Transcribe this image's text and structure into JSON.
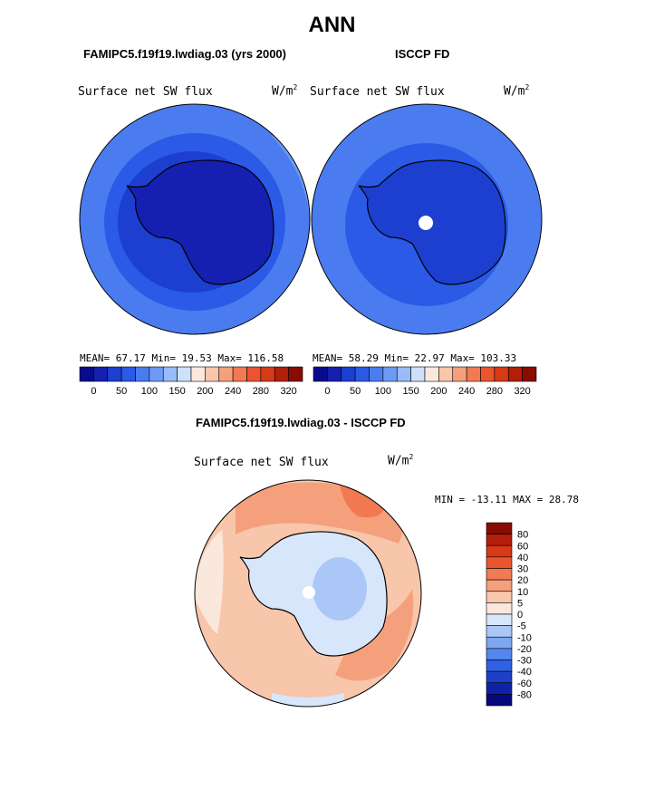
{
  "title": "ANN",
  "panel_left": {
    "case": "FAMIPC5.f19f19.lwdiag.03 (yrs 2000)",
    "variable": "Surface net SW flux",
    "units_base": "W/m",
    "units_exp": "2",
    "stats_text": "MEAN=  67.17   Min=  19.53   Max= 116.58"
  },
  "panel_right": {
    "case": "ISCCP FD",
    "variable": "Surface net SW flux",
    "units_base": "W/m",
    "units_exp": "2",
    "stats_text": "MEAN=  58.29   Min=  22.97   Max= 103.33"
  },
  "panel_diff": {
    "case": "FAMIPC5.f19f19.lwdiag.03 - ISCCP FD",
    "variable": "Surface net SW flux",
    "units_base": "W/m",
    "units_exp": "2",
    "stats_text": "MIN = -13.11  MAX =  28.78"
  },
  "abs_colorbar": {
    "colors": [
      "#0a0a8c",
      "#1520b0",
      "#1c3fd0",
      "#2a5ae6",
      "#4a7cf0",
      "#6e9af5",
      "#99bbf8",
      "#cfe0fb",
      "#fbe8dc",
      "#f8c6aa",
      "#f5a07c",
      "#f27a52",
      "#ea5530",
      "#d63a16",
      "#b21e0a",
      "#880c02"
    ],
    "labels": [
      "0",
      "50",
      "100",
      "150",
      "200",
      "240",
      "280",
      "320"
    ]
  },
  "diff_colorbar": {
    "colors": [
      "#880c02",
      "#b21e0a",
      "#d63a16",
      "#ea5530",
      "#f27a52",
      "#f5a07c",
      "#f8c6aa",
      "#fbe8dc",
      "#d7e6fb",
      "#aac7f7",
      "#7fa6f3",
      "#5585ee",
      "#2f62e2",
      "#1c40c8",
      "#0f22a6",
      "#06087e"
    ],
    "labels": [
      "80",
      "60",
      "40",
      "30",
      "20",
      "10",
      "5",
      "0",
      "-5",
      "-10",
      "-20",
      "-30",
      "-40",
      "-60",
      "-80"
    ]
  },
  "map_colors": {
    "abs_ocean_outer": "#4a7cf0",
    "abs_ocean_mid": "#2a5ae6",
    "abs_ocean_inner": "#1c3fd0",
    "abs_land": "#1520b0",
    "abs_outer_right": "#6e9af5",
    "diff_ocean_main": "#f8c6aa",
    "diff_ocean_strong": "#f5a07c",
    "diff_ocean_peak": "#f27a52",
    "diff_ocean_light": "#fbe8dc",
    "diff_land": "#d7e6fb",
    "diff_land_blue": "#aac7f7"
  }
}
